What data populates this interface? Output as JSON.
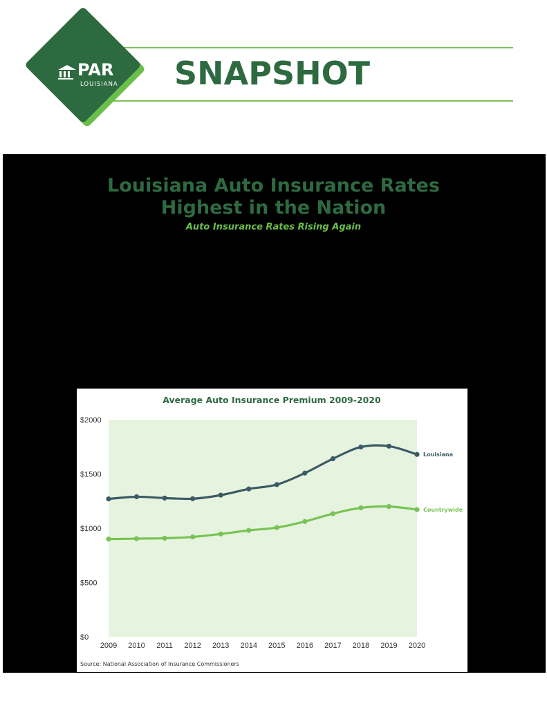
{
  "header": {
    "logo": {
      "name": "PAR",
      "sub": "LOUISIANA"
    },
    "section_title": "SNAPSHOT"
  },
  "headline": {
    "title_line1": "Louisiana Auto Insurance Rates",
    "title_line2": "Highest in the Nation",
    "subtitle": "Auto Insurance Rates Rising Again"
  },
  "colors": {
    "brand_green": "#2e6a40",
    "accent_green": "#6abf4b",
    "louisiana_line": "#3b5a66",
    "countrywide_line": "#77c455",
    "plot_background": "#e6f4df"
  },
  "chart_data": {
    "type": "line",
    "title": "Average Auto Insurance Premium 2009-2020",
    "x": [
      2009,
      2010,
      2011,
      2012,
      2013,
      2014,
      2015,
      2016,
      2017,
      2018,
      2019,
      2020
    ],
    "series": [
      {
        "name": "Louisiana",
        "values": [
          1270,
          1290,
          1278,
          1272,
          1305,
          1362,
          1402,
          1508,
          1640,
          1748,
          1756,
          1680
        ]
      },
      {
        "name": "Countrywide",
        "values": [
          900,
          904,
          908,
          920,
          947,
          980,
          1006,
          1062,
          1134,
          1188,
          1200,
          1172
        ]
      }
    ],
    "y_ticks": [
      "$0",
      "$500",
      "$1000",
      "$1500",
      "$2000"
    ],
    "ylim": [
      0,
      2000
    ],
    "xlabel": "",
    "ylabel": "",
    "grid": false,
    "legend": "labels at line ends",
    "source": "Source: National Association of Insurance Commissioners"
  }
}
